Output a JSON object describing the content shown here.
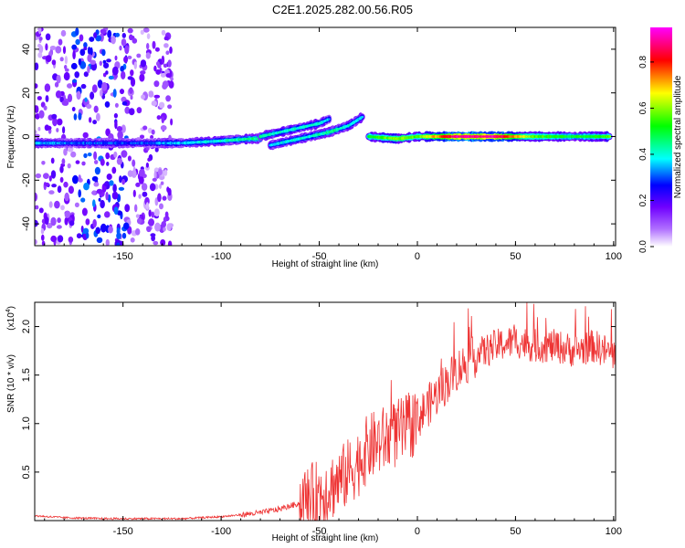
{
  "figure_title": "C2E1.2025.282.00.56.R05",
  "chart_data": [
    {
      "type": "heatmap",
      "xlabel": "Height of straight line (km)",
      "ylabel": "Frequency (Hz)",
      "xlim": [
        -195,
        101
      ],
      "ylim": [
        -50,
        50
      ],
      "x_ticks": [
        -150,
        -100,
        -50,
        0,
        50,
        100
      ],
      "x_tick_labels": [
        "-150",
        "-100",
        "-50",
        "0",
        "50",
        "100"
      ],
      "y_ticks": [
        -40,
        -20,
        0,
        20,
        40
      ],
      "y_tick_labels": [
        "-40",
        "-20",
        "0",
        "20",
        "40"
      ],
      "colorbar": {
        "label": "Normalized spectral amplitude",
        "range": [
          0,
          0.95
        ],
        "ticks": [
          0.0,
          0.2,
          0.4,
          0.6,
          0.8
        ],
        "tick_labels": [
          "0.0",
          "0.2",
          "0.4",
          "0.6",
          "0.8"
        ],
        "colors": [
          "#ffffff",
          "#b070ff",
          "#7000ff",
          "#0000ff",
          "#00ffff",
          "#00ff00",
          "#ffff00",
          "#ff0000",
          "#ff00ff"
        ]
      },
      "features": [
        {
          "name": "main-trace",
          "x": [
            -195,
            -170,
            -140,
            -120,
            -100,
            -85,
            -80
          ],
          "freq": [
            -3,
            -3,
            -3,
            -3,
            -2,
            -1,
            -1
          ],
          "amplitude": [
            0.35,
            0.3,
            0.3,
            0.35,
            0.4,
            0.45,
            0.45
          ]
        },
        {
          "name": "branch-upper",
          "x": [
            -80,
            -70,
            -60,
            -50,
            -45
          ],
          "freq": [
            0,
            2,
            4,
            6,
            8
          ],
          "amplitude": [
            0.45,
            0.4,
            0.4,
            0.4,
            0.35
          ]
        },
        {
          "name": "branch-lower",
          "x": [
            -75,
            -65,
            -55,
            -45,
            -35,
            -28
          ],
          "freq": [
            -4,
            -2,
            0,
            2,
            5,
            9
          ],
          "amplitude": [
            0.35,
            0.4,
            0.4,
            0.45,
            0.4,
            0.35
          ]
        },
        {
          "name": "flat-trace",
          "x": [
            -25,
            -10,
            0,
            20,
            40,
            60,
            80,
            98
          ],
          "freq": [
            0,
            -1,
            0,
            0,
            0,
            0,
            0,
            0
          ],
          "amplitude": [
            0.5,
            0.6,
            0.55,
            0.9,
            0.9,
            0.55,
            0.5,
            0.55
          ]
        }
      ],
      "noise_band": {
        "x_range": [
          -195,
          -125
        ],
        "amplitude": 0.12
      }
    },
    {
      "type": "line",
      "xlabel": "Height of straight line (km)",
      "ylabel": "SNR (10 * v/v)",
      "y_multiplier": "(x10",
      "y_multiplier_exp": "4",
      "y_multiplier_close": ")",
      "xlim": [
        -195,
        101
      ],
      "ylim": [
        0,
        2.25
      ],
      "x_ticks": [
        -150,
        -100,
        -50,
        0,
        50,
        100
      ],
      "x_tick_labels": [
        "-150",
        "-100",
        "-50",
        "0",
        "50",
        "100"
      ],
      "y_ticks": [
        0.5,
        1.0,
        1.5,
        2.0
      ],
      "y_tick_labels": [
        "0.5",
        "1.0",
        "1.5",
        "2.0"
      ],
      "series": [
        {
          "color": "#ee3333",
          "x": [
            -195,
            -180,
            -160,
            -140,
            -120,
            -100,
            -90,
            -80,
            -70,
            -60,
            -50,
            -40,
            -35,
            -30,
            -25,
            -20,
            -15,
            -10,
            -5,
            0,
            10,
            20,
            30,
            40,
            50,
            60,
            70,
            80,
            90,
            101
          ],
          "values": [
            0.05,
            0.03,
            0.02,
            0.02,
            0.02,
            0.04,
            0.06,
            0.08,
            0.12,
            0.18,
            0.28,
            0.4,
            0.5,
            0.6,
            0.75,
            0.8,
            0.85,
            0.9,
            0.95,
            1.05,
            1.3,
            1.55,
            1.7,
            1.8,
            1.85,
            1.8,
            1.8,
            1.75,
            1.8,
            1.7
          ]
        }
      ]
    }
  ]
}
